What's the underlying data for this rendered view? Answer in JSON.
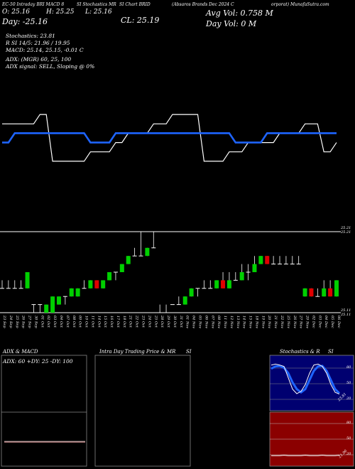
{
  "header": {
    "segments": [
      "EC-50 Intraday BRI MACD 8",
      "SI Stochastics MR",
      "SI Chart BRID",
      "(Absaros Brands Dec 2024 C",
      "orporat) MunafaSutra.com"
    ],
    "open_label": "O: 25.16",
    "high_label": "H: 25.25",
    "low_label": "L: 25.16",
    "close_label": "CL: 25.19",
    "day_label": "Day: -25.16",
    "avg_vol": "Avg Vol: 0.758  M",
    "day_vol": "Day Vol: 0  M"
  },
  "indicators": {
    "stochastics": "Stochastics: 23.81",
    "rsi": "R          SI 14/5: 21.96 / 19.95",
    "macd": "MACD: 25.14, 25.15, -0.01 C",
    "adx": "ADX:                    (MGR) 60, 25, 100",
    "adx_signal": "ADX  signal: SELL, Sloping @ 0%"
  },
  "price_axis": {
    "top_labels": [
      "25.21",
      "25.21"
    ],
    "bottom_labels": [
      "25.11",
      "25.11"
    ]
  },
  "panels": {
    "adx_title": "ADX  & MACD",
    "adx_values": "ADX: 60  +DY: 25  -DY: 100",
    "intraday_title": "Intra  Day Trading Price  & MR",
    "intraday_title_2": "SI",
    "stoch_title": "Stochastics & R",
    "stoch_title_2": "SI",
    "stoch_levels": [
      "80",
      "50",
      "20"
    ],
    "stoch_reading": "23.81",
    "rsi_levels": [
      "80",
      "50",
      "20"
    ],
    "rsi_reading": "21.96"
  },
  "colors": {
    "up": "#00d000",
    "down": "#e00000",
    "ma_line": "#1e64ff",
    "price_line": "#ffffff",
    "stoch_bg": "#000070",
    "rsi_bg": "#8b0000"
  },
  "chart_data": {
    "type": "line",
    "x": [
      "23 Sep",
      "24 Sep",
      "25 Sep",
      "26 Sep",
      "27 Sep",
      "30 Sep",
      "01 Oct",
      "02 Oct",
      "03 Oct",
      "04 Oct",
      "07 Oct",
      "08 Oct",
      "09 Oct",
      "10 Oct",
      "11 Oct",
      "14 Oct",
      "15 Oct",
      "16 Oct",
      "17 Oct",
      "18 Oct",
      "21 Oct",
      "22 Oct",
      "23 Oct",
      "24 Oct",
      "25 Oct",
      "28 Oct",
      "29 Oct",
      "30 Oct",
      "31 Oct",
      "01 Nov",
      "04 Nov",
      "05 Nov",
      "06 Nov",
      "07 Nov",
      "08 Nov",
      "11 Nov",
      "12 Nov",
      "13 Nov",
      "14 Nov",
      "15 Nov",
      "18 Nov",
      "19 Nov",
      "20 Nov",
      "21 Nov",
      "22 Nov",
      "25 Nov",
      "26 Nov",
      "27 Nov",
      "29 Nov",
      "02 Dec",
      "03 Dec",
      "04 Dec",
      "05 Dec",
      "06 Dec"
    ],
    "series": [
      {
        "values": [
          25.2,
          25.2,
          25.2,
          25.2,
          25.2,
          25.2,
          25.21,
          25.21,
          25.16,
          25.16,
          25.16,
          25.16,
          25.16,
          25.16,
          25.17,
          25.17,
          25.17,
          25.17,
          25.18,
          25.18,
          25.19,
          25.19,
          25.19,
          25.19,
          25.2,
          25.2,
          25.2,
          25.21,
          25.21,
          25.21,
          25.21,
          25.21,
          25.16,
          25.16,
          25.16,
          25.16,
          25.17,
          25.17,
          25.17,
          25.18,
          25.18,
          25.18,
          25.18,
          25.18,
          25.19,
          25.19,
          25.19,
          25.19,
          25.2,
          25.2,
          25.2,
          25.17,
          25.17,
          25.18
        ]
      },
      {
        "values": [
          25.18,
          25.18,
          25.19,
          25.19,
          25.19,
          25.19,
          25.19,
          25.19,
          25.19,
          25.19,
          25.19,
          25.19,
          25.19,
          25.19,
          25.18,
          25.18,
          25.18,
          25.18,
          25.19,
          25.19,
          25.19,
          25.19,
          25.19,
          25.19,
          25.19,
          25.19,
          25.19,
          25.19,
          25.19,
          25.19,
          25.19,
          25.19,
          25.19,
          25.19,
          25.19,
          25.19,
          25.19,
          25.18,
          25.18,
          25.18,
          25.18,
          25.18,
          25.19,
          25.19,
          25.19,
          25.19,
          25.19,
          25.19,
          25.19,
          25.19,
          25.19,
          25.19,
          25.19,
          25.19
        ]
      }
    ],
    "candles": [
      {
        "o": 25.14,
        "c": 25.14,
        "h": 25.15,
        "l": 25.14
      },
      {
        "o": 25.14,
        "c": 25.14,
        "h": 25.15,
        "l": 25.14
      },
      {
        "o": 25.14,
        "c": 25.14,
        "h": 25.15,
        "l": 25.14
      },
      {
        "o": 25.14,
        "c": 25.14,
        "h": 25.15,
        "l": 25.14
      },
      {
        "o": 25.14,
        "c": 25.16,
        "h": 25.16,
        "l": 25.14
      },
      {
        "o": 25.12,
        "c": 25.12,
        "h": 25.12,
        "l": 25.11
      },
      {
        "o": 25.12,
        "c": 25.12,
        "h": 25.12,
        "l": 25.11
      },
      {
        "o": 25.11,
        "c": 25.12,
        "h": 25.12,
        "l": 25.11
      },
      {
        "o": 25.11,
        "c": 25.13,
        "h": 25.13,
        "l": 25.11
      },
      {
        "o": 25.12,
        "c": 25.13,
        "h": 25.13,
        "l": 25.12
      },
      {
        "o": 25.13,
        "c": 25.13,
        "h": 25.13,
        "l": 25.12
      },
      {
        "o": 25.13,
        "c": 25.14,
        "h": 25.14,
        "l": 25.13
      },
      {
        "o": 25.13,
        "c": 25.14,
        "h": 25.14,
        "l": 25.13
      },
      {
        "o": 25.14,
        "c": 25.14,
        "h": 25.15,
        "l": 25.14
      },
      {
        "o": 25.14,
        "c": 25.15,
        "h": 25.15,
        "l": 25.14
      },
      {
        "o": 25.15,
        "c": 25.14,
        "h": 25.15,
        "l": 25.14
      },
      {
        "o": 25.14,
        "c": 25.15,
        "h": 25.15,
        "l": 25.14
      },
      {
        "o": 25.15,
        "c": 25.16,
        "h": 25.16,
        "l": 25.15
      },
      {
        "o": 25.16,
        "c": 25.16,
        "h": 25.16,
        "l": 25.15
      },
      {
        "o": 25.16,
        "c": 25.17,
        "h": 25.17,
        "l": 25.16
      },
      {
        "o": 25.17,
        "c": 25.18,
        "h": 25.18,
        "l": 25.17
      },
      {
        "o": 25.18,
        "c": 25.18,
        "h": 25.19,
        "l": 25.18
      },
      {
        "o": 25.18,
        "c": 25.18,
        "h": 25.21,
        "l": 25.18
      },
      {
        "o": 25.18,
        "c": 25.19,
        "h": 25.19,
        "l": 25.18
      },
      {
        "o": 25.19,
        "c": 25.19,
        "h": 25.21,
        "l": 25.19
      },
      {
        "o": 25.11,
        "c": 25.11,
        "h": 25.12,
        "l": 25.11
      },
      {
        "o": 25.11,
        "c": 25.11,
        "h": 25.12,
        "l": 25.11
      },
      {
        "o": 25.12,
        "c": 25.12,
        "h": 25.12,
        "l": 25.12
      },
      {
        "o": 25.12,
        "c": 25.12,
        "h": 25.13,
        "l": 25.12
      },
      {
        "o": 25.12,
        "c": 25.13,
        "h": 25.13,
        "l": 25.12
      },
      {
        "o": 25.13,
        "c": 25.14,
        "h": 25.14,
        "l": 25.13
      },
      {
        "o": 25.14,
        "c": 25.14,
        "h": 25.14,
        "l": 25.13
      },
      {
        "o": 25.14,
        "c": 25.14,
        "h": 25.15,
        "l": 25.14
      },
      {
        "o": 25.14,
        "c": 25.14,
        "h": 25.15,
        "l": 25.14
      },
      {
        "o": 25.14,
        "c": 25.15,
        "h": 25.15,
        "l": 25.14
      },
      {
        "o": 25.15,
        "c": 25.14,
        "h": 25.16,
        "l": 25.14
      },
      {
        "o": 25.14,
        "c": 25.15,
        "h": 25.16,
        "l": 25.14
      },
      {
        "o": 25.15,
        "c": 25.15,
        "h": 25.16,
        "l": 25.15
      },
      {
        "o": 25.15,
        "c": 25.16,
        "h": 25.17,
        "l": 25.15
      },
      {
        "o": 25.16,
        "c": 25.16,
        "h": 25.17,
        "l": 25.15
      },
      {
        "o": 25.16,
        "c": 25.17,
        "h": 25.18,
        "l": 25.16
      },
      {
        "o": 25.17,
        "c": 25.18,
        "h": 25.18,
        "l": 25.17
      },
      {
        "o": 25.18,
        "c": 25.17,
        "h": 25.18,
        "l": 25.17
      },
      {
        "o": 25.17,
        "c": 25.17,
        "h": 25.18,
        "l": 25.17
      },
      {
        "o": 25.17,
        "c": 25.17,
        "h": 25.18,
        "l": 25.17
      },
      {
        "o": 25.17,
        "c": 25.17,
        "h": 25.18,
        "l": 25.17
      },
      {
        "o": 25.17,
        "c": 25.17,
        "h": 25.18,
        "l": 25.17
      },
      {
        "o": 25.17,
        "c": 25.17,
        "h": 25.18,
        "l": 25.17
      },
      {
        "o": 25.13,
        "c": 25.14,
        "h": 25.14,
        "l": 25.13
      },
      {
        "o": 25.14,
        "c": 25.13,
        "h": 25.14,
        "l": 25.13
      },
      {
        "o": 25.13,
        "c": 25.13,
        "h": 25.14,
        "l": 25.13
      },
      {
        "o": 25.13,
        "c": 25.14,
        "h": 25.15,
        "l": 25.13
      },
      {
        "o": 25.14,
        "c": 25.13,
        "h": 25.15,
        "l": 25.13
      },
      {
        "o": 25.13,
        "c": 25.15,
        "h": 25.15,
        "l": 25.13
      }
    ],
    "stochastics": [
      88,
      90,
      88,
      85,
      60,
      35,
      25,
      30,
      45,
      70,
      88,
      90,
      85,
      70,
      45,
      28,
      24
    ],
    "stoch_signal": [
      80,
      85,
      86,
      82,
      70,
      50,
      35,
      28,
      35,
      55,
      75,
      85,
      86,
      75,
      55,
      35,
      26
    ],
    "rsi": [
      18,
      18,
      18,
      19,
      18,
      18,
      18,
      18,
      19,
      18,
      18,
      18,
      19,
      18,
      18,
      18,
      19
    ]
  }
}
